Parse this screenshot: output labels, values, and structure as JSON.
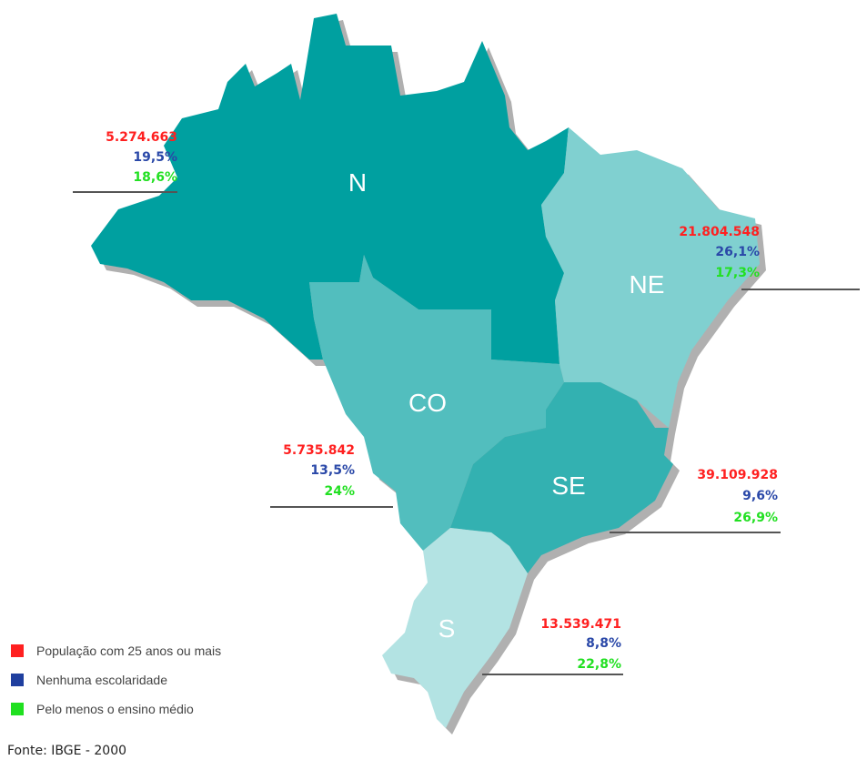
{
  "regions": [
    {
      "name": "N",
      "population": "5.274.663",
      "no_schooling": "19,5%",
      "high_school": "18,6%"
    },
    {
      "name": "NE",
      "population": "21.804.548",
      "no_schooling": "26,1%",
      "high_school": "17,3%"
    },
    {
      "name": "CO",
      "population": "5.735.842",
      "no_schooling": "13,5%",
      "high_school": "24%"
    },
    {
      "name": "SE",
      "population": "39.109.928",
      "no_schooling": "9,6%",
      "high_school": "26,9%"
    },
    {
      "name": "S",
      "population": "13.539.471",
      "no_schooling": "8,8%",
      "high_school": "22,8%"
    }
  ],
  "legend": [
    {
      "label": "População com 25 anos ou mais",
      "color": "#ff2020"
    },
    {
      "label": "Nenhuma escolaridade",
      "color": "#1f3f9f"
    },
    {
      "label": "Pelo menos o ensino médio",
      "color": "#20e020"
    }
  ],
  "source": "Fonte: IBGE - 2000"
}
